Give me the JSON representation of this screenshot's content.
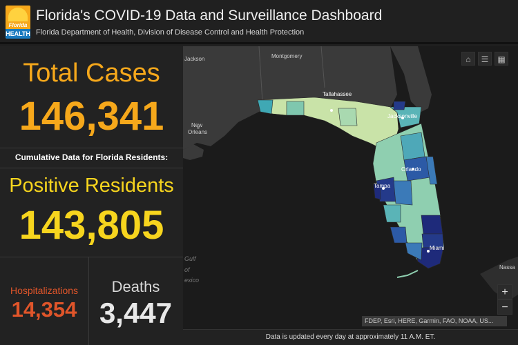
{
  "header": {
    "logo_text_top": "Florida",
    "logo_text_bottom": "HEALTH",
    "title": "Florida's COVID-19 Data and Surveillance Dashboard",
    "subtitle": "Florida Department of Health, Division of Disease Control and Health Protection"
  },
  "stats": {
    "total_cases_label": "Total Cases",
    "total_cases_value": "146,341",
    "cumulative_note": "Cumulative Data for Florida Residents:",
    "positive_residents_label": "Positive Residents",
    "positive_residents_value": "143,805",
    "hospitalizations_label": "Hospitalizations",
    "hospitalizations_value": "14,354",
    "deaths_label": "Deaths",
    "deaths_value": "3,447"
  },
  "colors": {
    "total_cases": "#f6a81b",
    "positive_residents": "#f7d51e",
    "hospitalizations": "#e0552a",
    "deaths": "#e8e8e8"
  },
  "map": {
    "labels": {
      "jackson": "Jackson",
      "montgomery": "Montgomery",
      "new_orleans_1": "New",
      "new_orleans_2": "Orleans",
      "tallahassee": "Tallahassee",
      "jacksonville": "Jacksonville",
      "orlando": "Orlando",
      "tampa": "Tampa",
      "miami": "Miami",
      "nassau": "Nassa",
      "gulf_1": "Gulf",
      "gulf_2": "of",
      "gulf_3": "exico"
    },
    "controls": {
      "home_icon": "home-icon",
      "list_icon": "list-icon",
      "qr_icon": "qr-code-icon",
      "zoom_in": "+",
      "zoom_out": "−"
    },
    "attribution": "FDEP, Esri, HERE, Garmin, FAO, NOAA, US...",
    "footer_note": "Data is updated every day at approximately 11 A.M. ET."
  }
}
